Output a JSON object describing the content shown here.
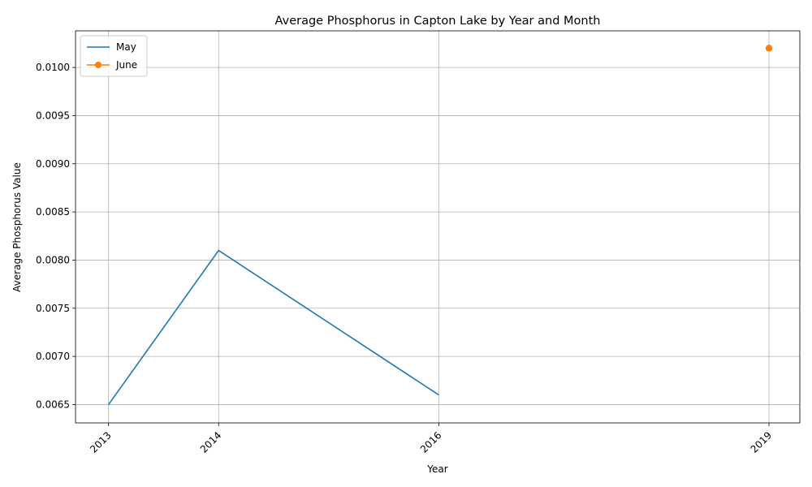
{
  "chart_data": {
    "type": "line",
    "title": "Average Phosphorus in Capton Lake by Year and Month",
    "xlabel": "Year",
    "ylabel": "Average Phosphorus Value",
    "x_ticks": [
      2013,
      2014,
      2016,
      2019
    ],
    "xlim": [
      2012.7,
      2019.28
    ],
    "ylim": [
      0.00631,
      0.01038
    ],
    "y_ticks": [
      0.0065,
      0.007,
      0.0075,
      0.008,
      0.0085,
      0.009,
      0.0095,
      0.01
    ],
    "y_tick_labels": [
      "0.0065",
      "0.0070",
      "0.0075",
      "0.0080",
      "0.0085",
      "0.0090",
      "0.0095",
      "0.0100"
    ],
    "grid": true,
    "legend_position": "top-left",
    "series": [
      {
        "name": "May",
        "color": "#1f77b4",
        "marker": "none",
        "x": [
          2013,
          2014,
          2016
        ],
        "y": [
          0.0065,
          0.0081,
          0.0066
        ]
      },
      {
        "name": "June",
        "color": "#ff7f0e",
        "marker": "circle",
        "x": [
          2019
        ],
        "y": [
          0.0102
        ]
      }
    ]
  }
}
